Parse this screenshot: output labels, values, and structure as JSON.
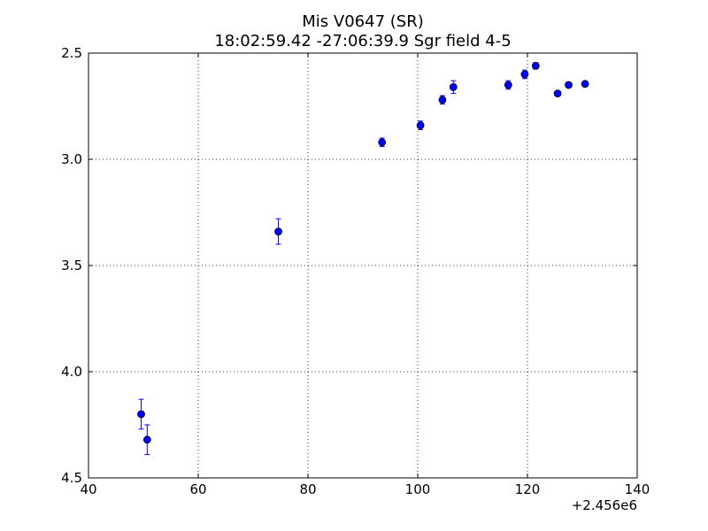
{
  "chart_data": {
    "type": "scatter",
    "title": "Mis V0647 (SR)",
    "subtitle": "18:02:59.42 -27:06:39.9 Sgr field 4-5",
    "x_offset_label": "+2.456e6",
    "xlim": [
      40,
      140
    ],
    "ylim": [
      2.5,
      4.5
    ],
    "y_inverted": true,
    "grid": true,
    "x_ticks": [
      40,
      60,
      80,
      100,
      120,
      140
    ],
    "x_tick_labels": [
      "40",
      "60",
      "80",
      "100",
      "120",
      "140"
    ],
    "y_ticks": [
      2.5,
      3.0,
      3.5,
      4.0,
      4.5
    ],
    "y_tick_labels": [
      "2.5",
      "3.0",
      "3.5",
      "4.0",
      "4.5"
    ],
    "color": "#0000ff",
    "points": [
      {
        "x": 49.6,
        "y": 4.2,
        "err": 0.07
      },
      {
        "x": 50.7,
        "y": 4.32,
        "err": 0.07
      },
      {
        "x": 74.6,
        "y": 3.34,
        "err": 0.06
      },
      {
        "x": 93.5,
        "y": 2.92,
        "err": 0.02
      },
      {
        "x": 100.5,
        "y": 2.84,
        "err": 0.02
      },
      {
        "x": 104.5,
        "y": 2.72,
        "err": 0.02
      },
      {
        "x": 106.5,
        "y": 2.66,
        "err": 0.03
      },
      {
        "x": 116.5,
        "y": 2.65,
        "err": 0.02
      },
      {
        "x": 119.5,
        "y": 2.6,
        "err": 0.02
      },
      {
        "x": 121.5,
        "y": 2.56,
        "err": 0.015
      },
      {
        "x": 125.5,
        "y": 2.69,
        "err": 0.01
      },
      {
        "x": 127.5,
        "y": 2.65,
        "err": 0.01
      },
      {
        "x": 130.5,
        "y": 2.645,
        "err": 0.01
      }
    ]
  }
}
